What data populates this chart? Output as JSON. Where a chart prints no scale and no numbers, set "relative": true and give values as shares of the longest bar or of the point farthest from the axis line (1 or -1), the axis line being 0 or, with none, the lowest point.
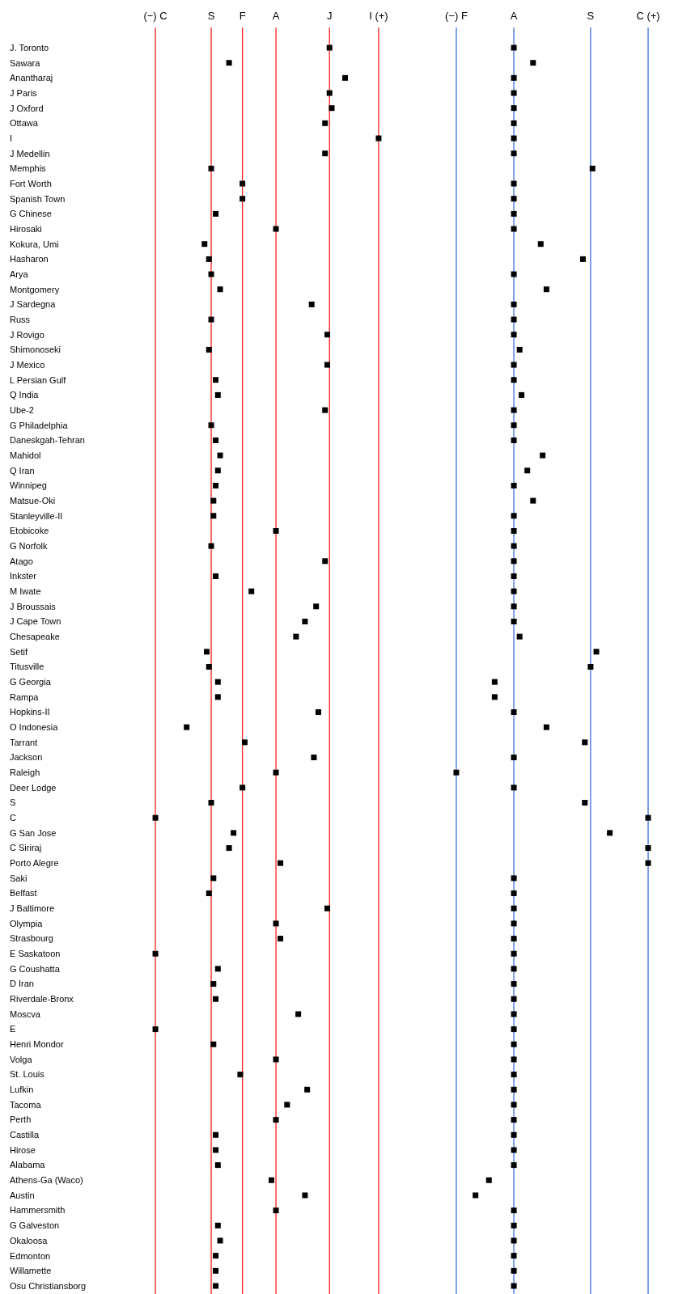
{
  "chart_data": [
    {
      "type": "scatter",
      "orientation": "horizontal",
      "marker": "square",
      "relative": true,
      "categories": [
        "J. Toronto",
        "Sawara",
        "Anantharaj",
        "J Paris",
        "J Oxford",
        "Ottawa",
        "I",
        "J Medellin",
        "Memphis",
        "Fort Worth",
        "Spanish Town",
        "G Chinese",
        "Hirosaki",
        "Kokura, Umi",
        "Hasharon",
        "Arya",
        "Montgomery",
        "J Sardegna",
        "Russ",
        "J Rovigo",
        "Shimonoseki",
        "J Mexico",
        "L Persian Gulf",
        "Q India",
        "Ube-2",
        "G Philadelphia",
        "Daneskgah-Tehran",
        "Mahidol",
        "Q Iran",
        "Winnipeg",
        "Matsue-Oki",
        "Stanleyville-II",
        "Etobicoke",
        "G Norfolk",
        "Atago",
        "Inkster",
        "M Iwate",
        "J Broussais",
        "J Cape Town",
        "Chesapeake",
        "Setif",
        "Titusville",
        "G Georgia",
        "Rampa",
        "Hopkins-II",
        "O Indonesia",
        "Tarrant",
        "Jackson",
        "Raleigh",
        "Deer Lodge",
        "S",
        "C",
        "G San Jose",
        "C Siriraj",
        "Porto Alegre",
        "Saki",
        "Belfast",
        "J Baltimore",
        "Olympia",
        "Strasbourg",
        "E Saskatoon",
        "G Coushatta",
        "D Iran",
        "Riverdale-Bronx",
        "Moscva",
        "E",
        "Henri Mondor",
        "Volga",
        "St. Louis",
        "Lufkin",
        "Tacoma",
        "Perth",
        "Castilla",
        "Hirose",
        "Alabama",
        "Athens-Ga (Waco)",
        "Austin",
        "Hammersmith",
        "G Galveston",
        "Okaloosa",
        "Edmonton",
        "Willamette",
        "Osu Christiansborg"
      ],
      "series": [
        {
          "color": "#000000",
          "values": [
            0.78,
            0.33,
            0.85,
            0.78,
            0.79,
            0.76,
            1,
            0.76,
            0.25,
            0.39,
            0.39,
            0.27,
            0.54,
            0.22,
            0.24,
            0.25,
            0.29,
            0.7,
            0.25,
            0.77,
            0.24,
            0.77,
            0.27,
            0.28,
            0.76,
            0.25,
            0.27,
            0.29,
            0.28,
            0.27,
            0.26,
            0.26,
            0.54,
            0.25,
            0.76,
            0.27,
            0.43,
            0.72,
            0.67,
            0.63,
            0.23,
            0.24,
            0.28,
            0.28,
            0.73,
            0.14,
            0.4,
            0.71,
            0.54,
            0.39,
            0.25,
            0,
            0.35,
            0.33,
            0.56,
            0.26,
            0.24,
            0.77,
            0.54,
            0.56,
            0,
            0.28,
            0.26,
            0.27,
            0.64,
            0,
            0.26,
            0.54,
            0.38,
            0.68,
            0.59,
            0.54,
            0.27,
            0.27,
            0.28,
            0.52,
            0.67,
            0.54,
            0.28,
            0.29,
            0.27,
            0.27,
            0.27
          ]
        }
      ],
      "ref_lines": [
        {
          "axis": "x",
          "value": 0,
          "label": "(−) C",
          "color": "#ff2020"
        },
        {
          "axis": "x",
          "value": 0.25,
          "label": "S",
          "color": "#ff2020"
        },
        {
          "axis": "x",
          "value": 0.39,
          "label": "F",
          "color": "#ff2020"
        },
        {
          "axis": "x",
          "value": 0.54,
          "label": "A",
          "color": "#ff2020"
        },
        {
          "axis": "x",
          "value": 0.78,
          "label": "J",
          "color": "#ff2020"
        },
        {
          "axis": "x",
          "value": 1,
          "label": "I (+)",
          "color": "#ff2020"
        }
      ]
    },
    {
      "type": "scatter",
      "orientation": "horizontal",
      "marker": "square",
      "relative": true,
      "categories": [
        null,
        null,
        null,
        null,
        null,
        null,
        null,
        null,
        null,
        null,
        null,
        null,
        null,
        null,
        null,
        null,
        null,
        null,
        null,
        null,
        null,
        null,
        null,
        null,
        null,
        null,
        null,
        null,
        null,
        null,
        null,
        null,
        null,
        null,
        null,
        null,
        null,
        null,
        null,
        null,
        null,
        null,
        null,
        null,
        null,
        null,
        null,
        null,
        null,
        null,
        null,
        null,
        null,
        null,
        null,
        null,
        null,
        null,
        null,
        null,
        null,
        null,
        null,
        null,
        null,
        null,
        null,
        null,
        null,
        null,
        null,
        null,
        null,
        null,
        null,
        null,
        null,
        null,
        null,
        null,
        null,
        null,
        null
      ],
      "series": [
        {
          "color": "#000000",
          "values": [
            0.3,
            0.4,
            0.3,
            0.3,
            0.3,
            0.3,
            0.3,
            0.3,
            0.71,
            0.3,
            0.3,
            0.3,
            0.3,
            0.44,
            0.66,
            0.3,
            0.47,
            0.3,
            0.3,
            0.3,
            0.33,
            0.3,
            0.3,
            0.34,
            0.3,
            0.3,
            0.3,
            0.45,
            0.37,
            0.3,
            0.4,
            0.3,
            0.3,
            0.3,
            0.3,
            0.3,
            0.3,
            0.3,
            0.3,
            0.33,
            0.73,
            0.7,
            0.2,
            0.2,
            0.3,
            0.47,
            0.67,
            0.3,
            0,
            0.3,
            0.67,
            1,
            0.8,
            1,
            1,
            0.3,
            0.3,
            0.3,
            0.3,
            0.3,
            0.3,
            0.3,
            0.3,
            0.3,
            0.3,
            0.3,
            0.3,
            0.3,
            0.3,
            0.3,
            0.3,
            0.3,
            0.3,
            0.3,
            0.3,
            0.17,
            0.1,
            0.3,
            0.3,
            0.3,
            0.3,
            0.3,
            0.3
          ]
        }
      ],
      "ref_lines": [
        {
          "axis": "x",
          "value": 0,
          "label": "(−) F",
          "color": "#3b6fe0"
        },
        {
          "axis": "x",
          "value": 0.3,
          "label": "A",
          "color": "#3b6fe0"
        },
        {
          "axis": "x",
          "value": 0.7,
          "label": "S",
          "color": "#3b6fe0"
        },
        {
          "axis": "x",
          "value": 1,
          "label": "C (+)",
          "color": "#3b6fe0"
        }
      ]
    }
  ]
}
